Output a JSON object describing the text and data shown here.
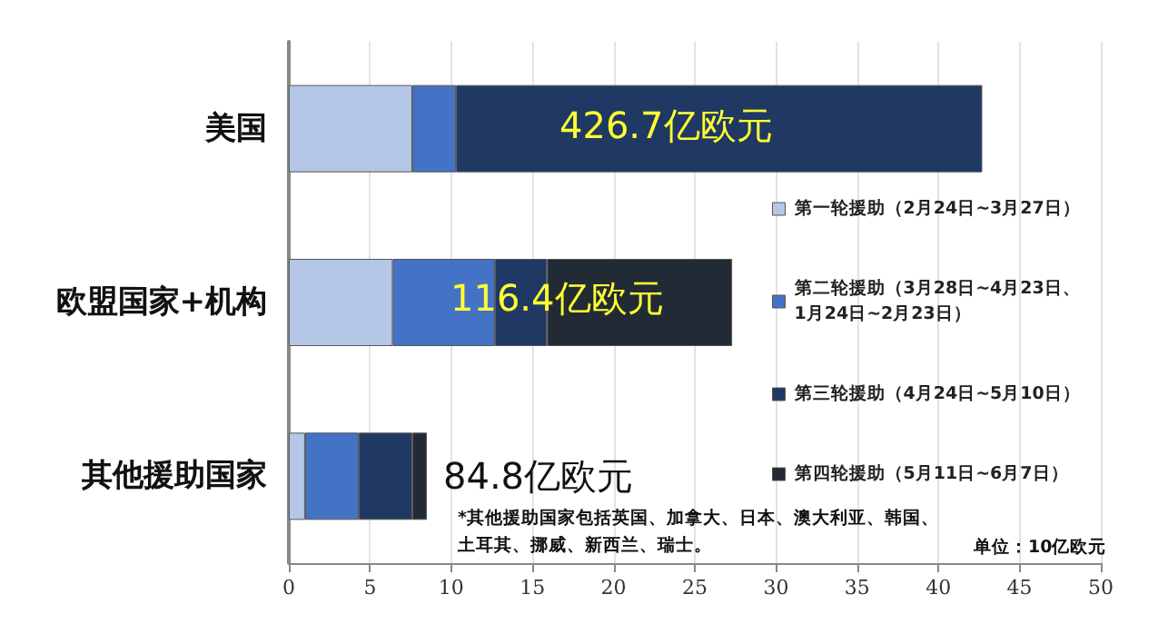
{
  "chart_data": {
    "type": "bar",
    "orientation": "horizontal",
    "stacked": true,
    "categories": [
      "美国",
      "欧盟国家+机构",
      "其他援助国家"
    ],
    "series": [
      {
        "name": "第一轮援助（2月24日~3月27日）",
        "color": "#b4c7e7",
        "values": [
          7.6,
          6.4,
          1.0
        ]
      },
      {
        "name": "第二轮援助（3月28日~4月23日、\n1月24日~2月23日）",
        "color": "#4472c4",
        "values": [
          2.7,
          6.3,
          3.3
        ]
      },
      {
        "name": "第三轮援助（4月24日~5月10日）",
        "color": "#1f3864",
        "values": [
          32.4,
          3.2,
          3.3
        ]
      },
      {
        "name": "第四轮援助（5月11日~6月7日）",
        "color": "#222a35",
        "values": [
          null,
          11.4,
          0.9
        ]
      }
    ],
    "xlim": [
      0,
      50
    ],
    "xticks": [
      0,
      5,
      10,
      15,
      20,
      25,
      30,
      35,
      40,
      45,
      50
    ],
    "grid": "x",
    "legend": "right",
    "annotations": [
      "426.7亿欧元",
      "116.4亿欧元",
      "84.8亿欧元",
      "*其他援助国家包括英国、加拿大、日本、澳大利亚、韩国、土耳其、挪威、新西兰、瑞士。",
      "单位：10亿欧元"
    ]
  }
}
